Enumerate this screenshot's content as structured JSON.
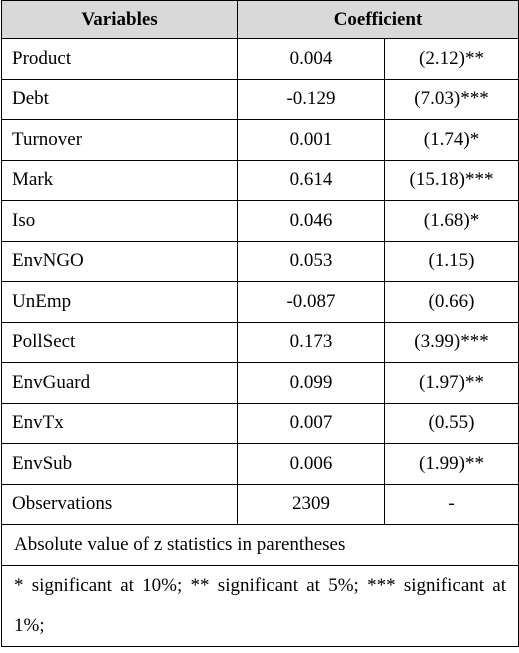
{
  "table": {
    "header": [
      "Variables",
      "Coefficient"
    ],
    "rows": [
      [
        "Product",
        "0.004",
        "(2.12)**"
      ],
      [
        "Debt",
        "-0.129",
        "(7.03)***"
      ],
      [
        "Turnover",
        "0.001",
        "(1.74)*"
      ],
      [
        "Mark",
        "0.614",
        "(15.18)***"
      ],
      [
        "Iso",
        "0.046",
        "(1.68)*"
      ],
      [
        "EnvNGO",
        "0.053",
        "(1.15)"
      ],
      [
        "UnEmp",
        "-0.087",
        "(0.66)"
      ],
      [
        "PollSect",
        "0.173",
        "(3.99)***"
      ],
      [
        "EnvGuard",
        "0.099",
        "(1.97)**"
      ],
      [
        "EnvTx",
        "0.007",
        "(0.55)"
      ],
      [
        "EnvSub",
        "0.006",
        "(1.99)**"
      ],
      [
        "Observations",
        "2309",
        "-"
      ]
    ],
    "notes": [
      "Absolute value of z statistics in parentheses",
      "* significant at 10%; ** significant at 5%; *** significant at 1%;"
    ]
  }
}
